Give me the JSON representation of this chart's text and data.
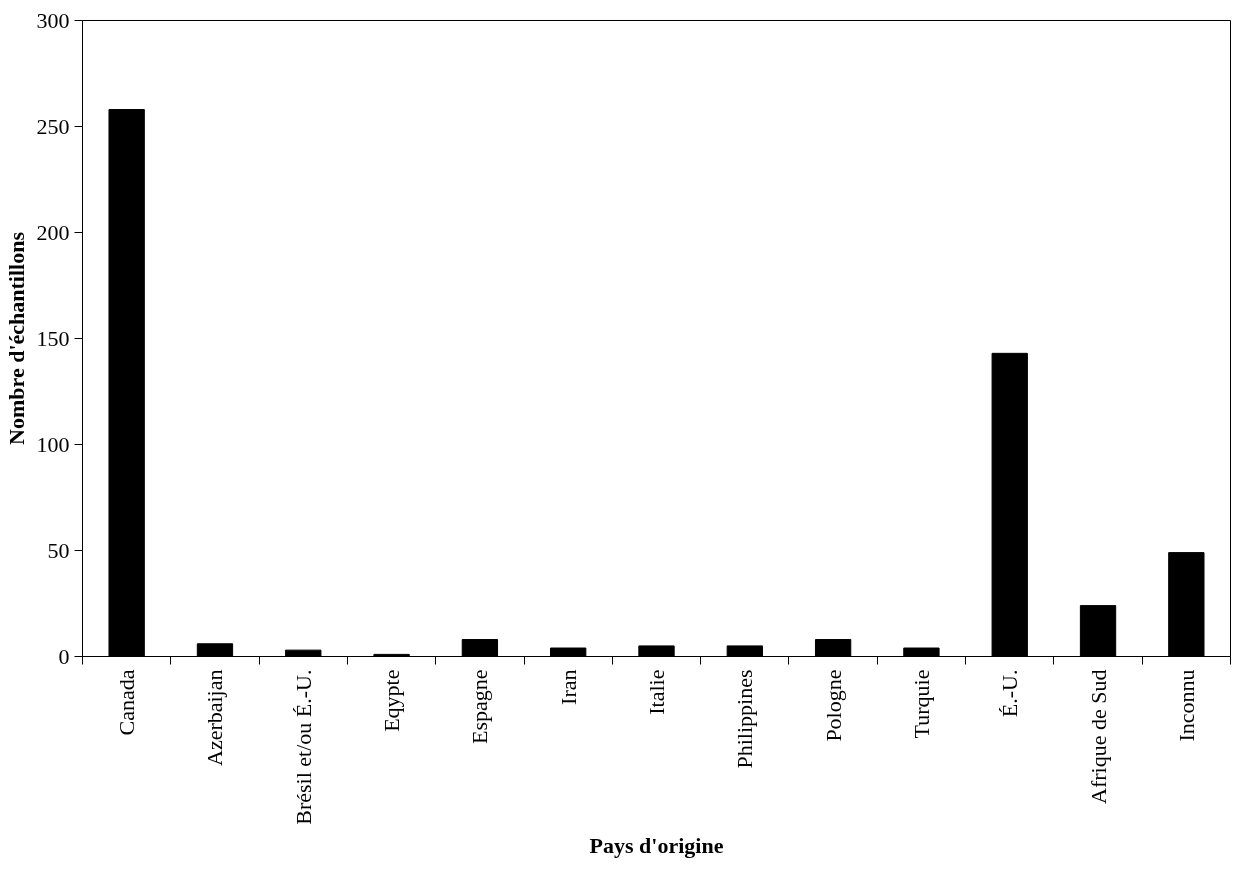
{
  "chart_data": {
    "type": "bar",
    "xlabel": "Pays d'origine",
    "ylabel": "Nombre d'échantillons",
    "categories": [
      "Canada",
      "Azerbaijan",
      "Brésil et/ou É.-U.",
      "Eqypte",
      "Espagne",
      "Iran",
      "Italie",
      "Philippines",
      "Pologne",
      "Turquie",
      "É.-U.",
      "Afrique de Sud",
      "Inconnu"
    ],
    "values": [
      258,
      6,
      3,
      1,
      8,
      4,
      5,
      5,
      8,
      4,
      143,
      24,
      49
    ],
    "color": "#000000",
    "ylim": [
      0,
      300
    ],
    "yticks": [
      0,
      50,
      100,
      150,
      200,
      250,
      300
    ],
    "grid": false
  }
}
